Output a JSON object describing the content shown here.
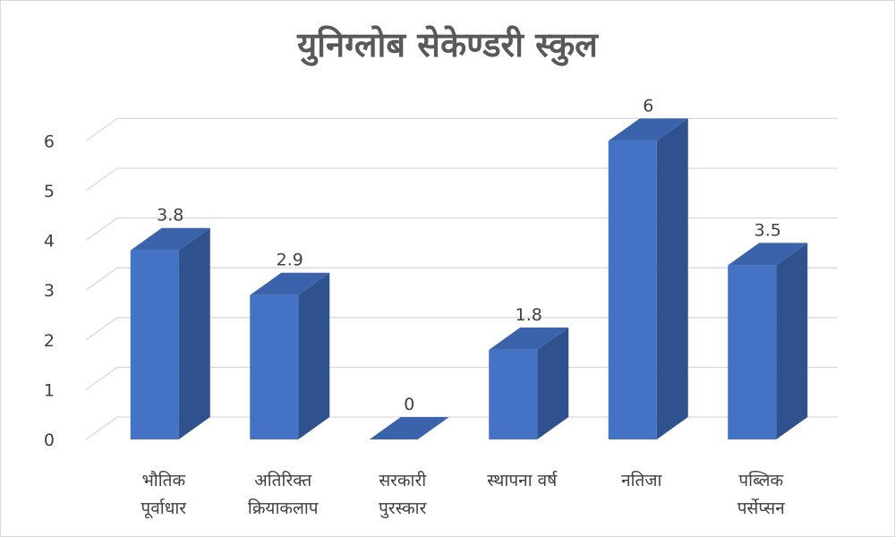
{
  "chart_data": {
    "type": "bar",
    "title": "युनिग्लोब सेकेण्डरी स्कुल",
    "categories": [
      [
        "भौतिक",
        "पूर्वाधार"
      ],
      [
        "अतिरिक्त",
        "क्रियाकलाप"
      ],
      [
        "सरकारी",
        "पुरस्कार"
      ],
      [
        "स्थापना वर्ष"
      ],
      [
        "नतिजा"
      ],
      [
        "पब्लिक",
        "पर्सेप्सन"
      ]
    ],
    "values": [
      3.8,
      2.9,
      0,
      1.8,
      6,
      3.5
    ],
    "data_labels": [
      "3.8",
      "2.9",
      "0",
      "1.8",
      "6",
      "3.5"
    ],
    "yticks": [
      "0",
      "1",
      "2",
      "3",
      "4",
      "5",
      "6"
    ],
    "ylim": [
      0,
      6.6
    ],
    "grid": true,
    "legend": "none",
    "style": "3d-column",
    "colors": {
      "bar_front": "#4472C4",
      "bar_side": "#2F528F",
      "bar_top": "#3A63AB",
      "grid": "#d9d9d9",
      "text": "#404040",
      "title": "#595959"
    }
  }
}
